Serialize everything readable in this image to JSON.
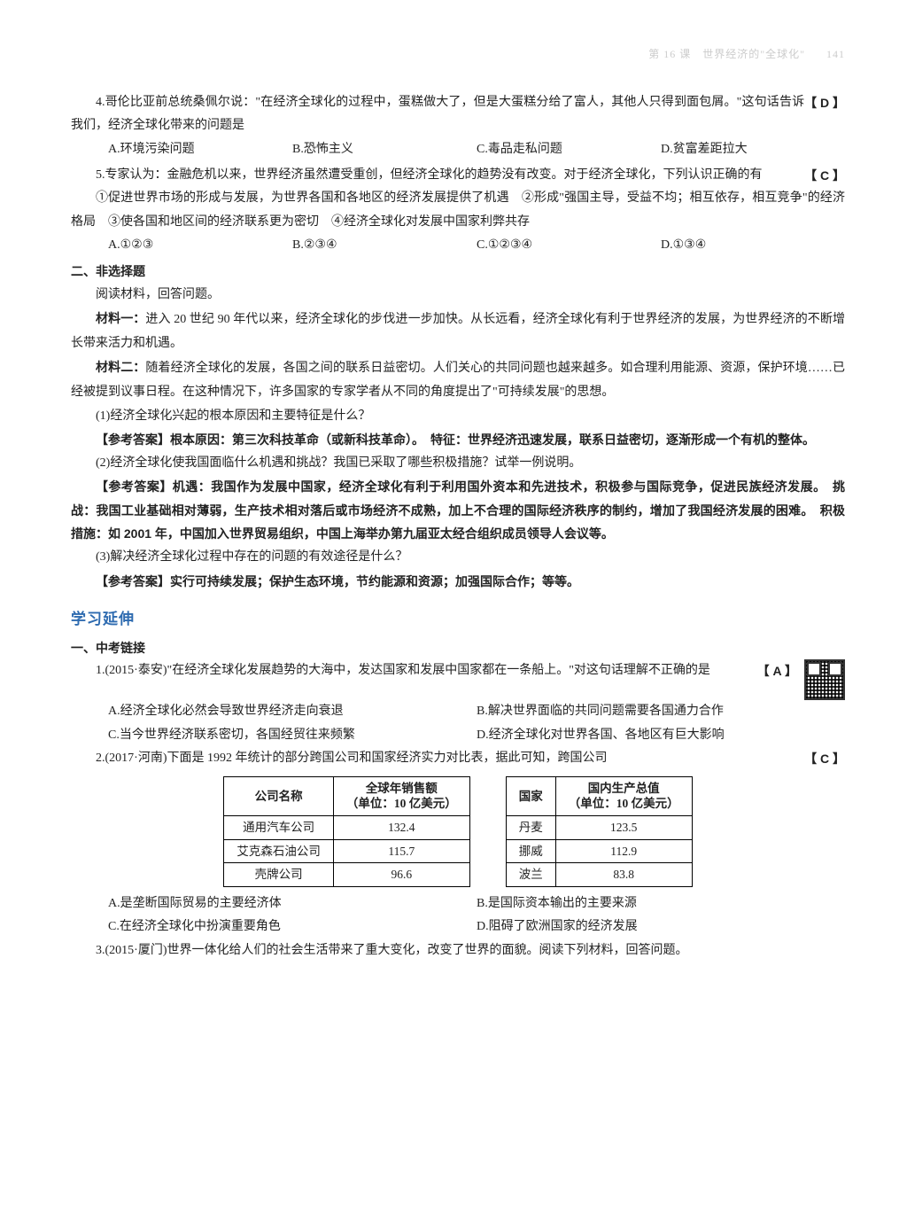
{
  "header": {
    "chapter": "第 16 课　世界经济的\"全球化\"",
    "page": "141"
  },
  "q4": {
    "stem": "4.哥伦比亚前总统桑佩尔说：\"在经济全球化的过程中，蛋糕做大了，但是大蛋糕分给了富人，其他人只得到面包屑。\"这句话告诉我们，经济全球化带来的问题是",
    "answer": "【 D 】",
    "opts": [
      "A.环境污染问题",
      "B.恐怖主义",
      "C.毒品走私问题",
      "D.贫富差距拉大"
    ]
  },
  "q5": {
    "stem": "5.专家认为：金融危机以来，世界经济虽然遭受重创，但经济全球化的趋势没有改变。对于经济全球化，下列认识正确的有",
    "answer": "【 C 】",
    "items": "①促进世界市场的形成与发展，为世界各国和各地区的经济发展提供了机遇　②形成\"强国主导，受益不均；相互依存，相互竞争\"的经济格局　③使各国和地区间的经济联系更为密切　④经济全球化对发展中国家利弊共存",
    "opts": [
      "A.①②③",
      "B.②③④",
      "C.①②③④",
      "D.①③④"
    ]
  },
  "section2": "二、非选择题",
  "read": "阅读材料，回答问题。",
  "mat1_label": "材料一：",
  "mat1": "进入 20 世纪 90 年代以来，经济全球化的步伐进一步加快。从长远看，经济全球化有利于世界经济的发展，为世界经济的不断增长带来活力和机遇。",
  "mat2_label": "材料二：",
  "mat2": "随着经济全球化的发展，各国之间的联系日益密切。人们关心的共同问题也越来越多。如合理利用能源、资源，保护环境……已经被提到议事日程。在这种情况下，许多国家的专家学者从不同的角度提出了\"可持续发展\"的思想。",
  "sub1_q": "(1)经济全球化兴起的根本原因和主要特征是什么？",
  "sub1_a": "【参考答案】根本原因：第三次科技革命（或新科技革命）。　特征：世界经济迅速发展，联系日益密切，逐渐形成一个有机的整体。",
  "sub2_q": "(2)经济全球化使我国面临什么机遇和挑战？我国已采取了哪些积极措施？试举一例说明。",
  "sub2_a": "【参考答案】机遇：我国作为发展中国家，经济全球化有利于利用国外资本和先进技术，积极参与国际竞争，促进民族经济发展。　挑战：我国工业基础相对薄弱，生产技术相对落后或市场经济不成熟，加上不合理的国际经济秩序的制约，增加了我国经济发展的困难。　积极措施：如 2001 年，中国加入世界贸易组织，中国上海举办第九届亚太经合组织成员领导人会议等。",
  "sub3_q": "(3)解决经济全球化过程中存在的问题的有效途径是什么？",
  "sub3_a": "【参考答案】实行可持续发展；保护生态环境，节约能源和资源；加强国际合作；等等。",
  "extend_title": "学习延伸",
  "zk_title": "一、中考链接",
  "zk1": {
    "stem": "1.(2015·泰安)\"在经济全球化发展趋势的大海中，发达国家和发展中国家都在一条船上。\"对这句话理解不正确的是",
    "answer": "【 A 】",
    "opts": [
      "A.经济全球化必然会导致世界经济走向衰退",
      "B.解决世界面临的共同问题需要各国通力合作",
      "C.当今世界经济联系密切，各国经贸往来频繁",
      "D.经济全球化对世界各国、各地区有巨大影响"
    ]
  },
  "zk2": {
    "stem": "2.(2017·河南)下面是 1992 年统计的部分跨国公司和国家经济实力对比表，据此可知，跨国公司",
    "answer": "【 C 】",
    "table1": {
      "headers": [
        "公司名称",
        "全球年销售额\n（单位：10 亿美元）"
      ],
      "rows": [
        [
          "通用汽车公司",
          "132.4"
        ],
        [
          "艾克森石油公司",
          "115.7"
        ],
        [
          "壳牌公司",
          "96.6"
        ]
      ]
    },
    "table2": {
      "headers": [
        "国家",
        "国内生产总值\n（单位：10 亿美元）"
      ],
      "rows": [
        [
          "丹麦",
          "123.5"
        ],
        [
          "挪威",
          "112.9"
        ],
        [
          "波兰",
          "83.8"
        ]
      ]
    },
    "opts": [
      "A.是垄断国际贸易的主要经济体",
      "B.是国际资本输出的主要来源",
      "C.在经济全球化中扮演重要角色",
      "D.阻碍了欧洲国家的经济发展"
    ]
  },
  "zk3": "3.(2015·厦门)世界一体化给人们的社会生活带来了重大变化，改变了世界的面貌。阅读下列材料，回答问题。"
}
